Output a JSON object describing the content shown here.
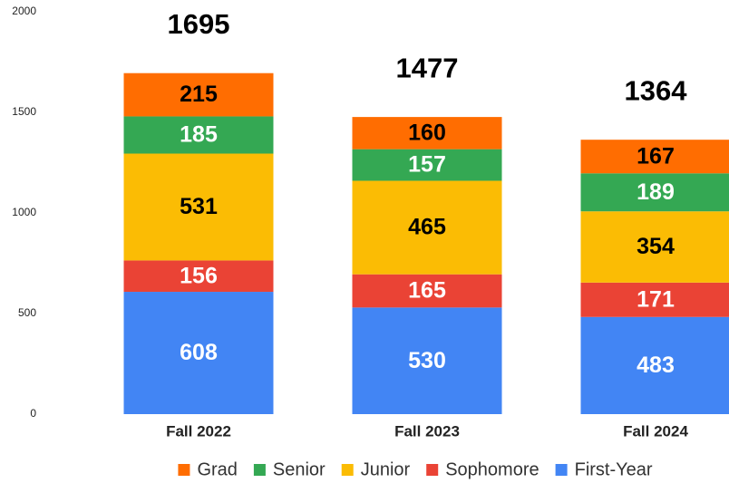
{
  "chart_data": {
    "type": "stacked_bar",
    "categories": [
      "Fall 2022",
      "Fall 2023",
      "Fall 2024"
    ],
    "series": [
      {
        "name": "Grad",
        "color": "#ff6d01",
        "label_color": "#000000",
        "values": [
          215,
          160,
          167
        ]
      },
      {
        "name": "Senior",
        "color": "#34a853",
        "label_color": "#ffffff",
        "values": [
          185,
          157,
          189
        ]
      },
      {
        "name": "Junior",
        "color": "#fbbc04",
        "label_color": "#000000",
        "values": [
          531,
          465,
          354
        ]
      },
      {
        "name": "Sophomore",
        "color": "#ea4335",
        "label_color": "#ffffff",
        "values": [
          156,
          165,
          171
        ]
      },
      {
        "name": "First-Year",
        "color": "#4285f4",
        "label_color": "#ffffff",
        "values": [
          608,
          530,
          483
        ]
      }
    ],
    "totals": [
      1695,
      1477,
      1364
    ],
    "ylim": [
      0,
      2000
    ],
    "yticks": [
      0,
      500,
      1000,
      1500,
      2000
    ],
    "grid": false,
    "legend": "bottom"
  }
}
